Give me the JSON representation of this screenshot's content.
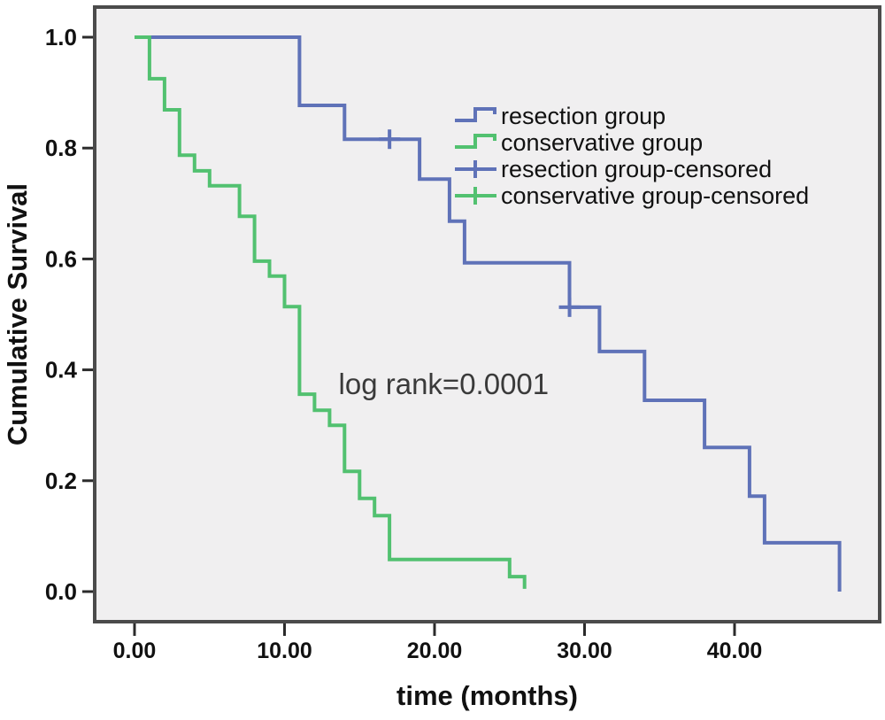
{
  "colors": {
    "resection_blue": "#5f72b8",
    "conservative_green": "#52c170",
    "plot_bg": "#f0eff0",
    "border": "#4b4b4b",
    "tick": "#2b2b2b",
    "text": "#111111",
    "annotation_text": "#3a3a3a"
  },
  "chart_data": {
    "type": "line",
    "variant": "kaplan-meier-step-survival",
    "title": "",
    "xlabel": "time (months)",
    "ylabel": "Cumulative Survival",
    "grid": false,
    "xlim": [
      0,
      49.7
    ],
    "ylim": [
      0,
      1.05
    ],
    "x_ticks": {
      "values": [
        0,
        10,
        20,
        30,
        40
      ],
      "labels": [
        "0.00",
        "10.00",
        "20.00",
        "30.00",
        "40.00"
      ]
    },
    "y_ticks": {
      "values": [
        0.0,
        0.2,
        0.4,
        0.6,
        0.8,
        1.0
      ],
      "labels": [
        "0.0",
        "0.2",
        "0.4",
        "0.6",
        "0.8",
        "1.0"
      ]
    },
    "annotation": {
      "text": "log rank=0.0001",
      "x": 13.6,
      "y": 0.356
    },
    "legend": {
      "position": "upper-right-inside",
      "items": [
        {
          "label": "resection group",
          "marker": "step-line",
          "color_key": "resection_blue"
        },
        {
          "label": "conservative group",
          "marker": "step-line",
          "color_key": "conservative_green"
        },
        {
          "label": "resection group-censored",
          "marker": "plus-line",
          "color_key": "resection_blue"
        },
        {
          "label": "conservative group-censored",
          "marker": "plus-line",
          "color_key": "conservative_green"
        }
      ]
    },
    "series": [
      {
        "name": "resection group",
        "color_key": "resection_blue",
        "steps": [
          [
            0,
            1.0
          ],
          [
            11,
            0.877
          ],
          [
            14,
            0.816
          ],
          [
            19,
            0.744
          ],
          [
            21,
            0.668
          ],
          [
            22,
            0.593
          ],
          [
            29,
            0.513
          ],
          [
            31,
            0.433
          ],
          [
            34,
            0.345
          ],
          [
            38,
            0.26
          ],
          [
            41,
            0.172
          ],
          [
            42,
            0.088
          ],
          [
            47,
            0.0
          ]
        ],
        "censored": [
          [
            17,
            0.816
          ],
          [
            29,
            0.513
          ]
        ]
      },
      {
        "name": "conservative group",
        "color_key": "conservative_green",
        "steps": [
          [
            0,
            1.0
          ],
          [
            1,
            0.925
          ],
          [
            2,
            0.869
          ],
          [
            3,
            0.787
          ],
          [
            4,
            0.759
          ],
          [
            5,
            0.732
          ],
          [
            7,
            0.677
          ],
          [
            8,
            0.596
          ],
          [
            9,
            0.569
          ],
          [
            10,
            0.514
          ],
          [
            11,
            0.356
          ],
          [
            12,
            0.327
          ],
          [
            13,
            0.3
          ],
          [
            14,
            0.217
          ],
          [
            15,
            0.168
          ],
          [
            16,
            0.137
          ],
          [
            17,
            0.058
          ],
          [
            25,
            0.027
          ],
          [
            26,
            0.005
          ]
        ],
        "censored": []
      }
    ]
  }
}
